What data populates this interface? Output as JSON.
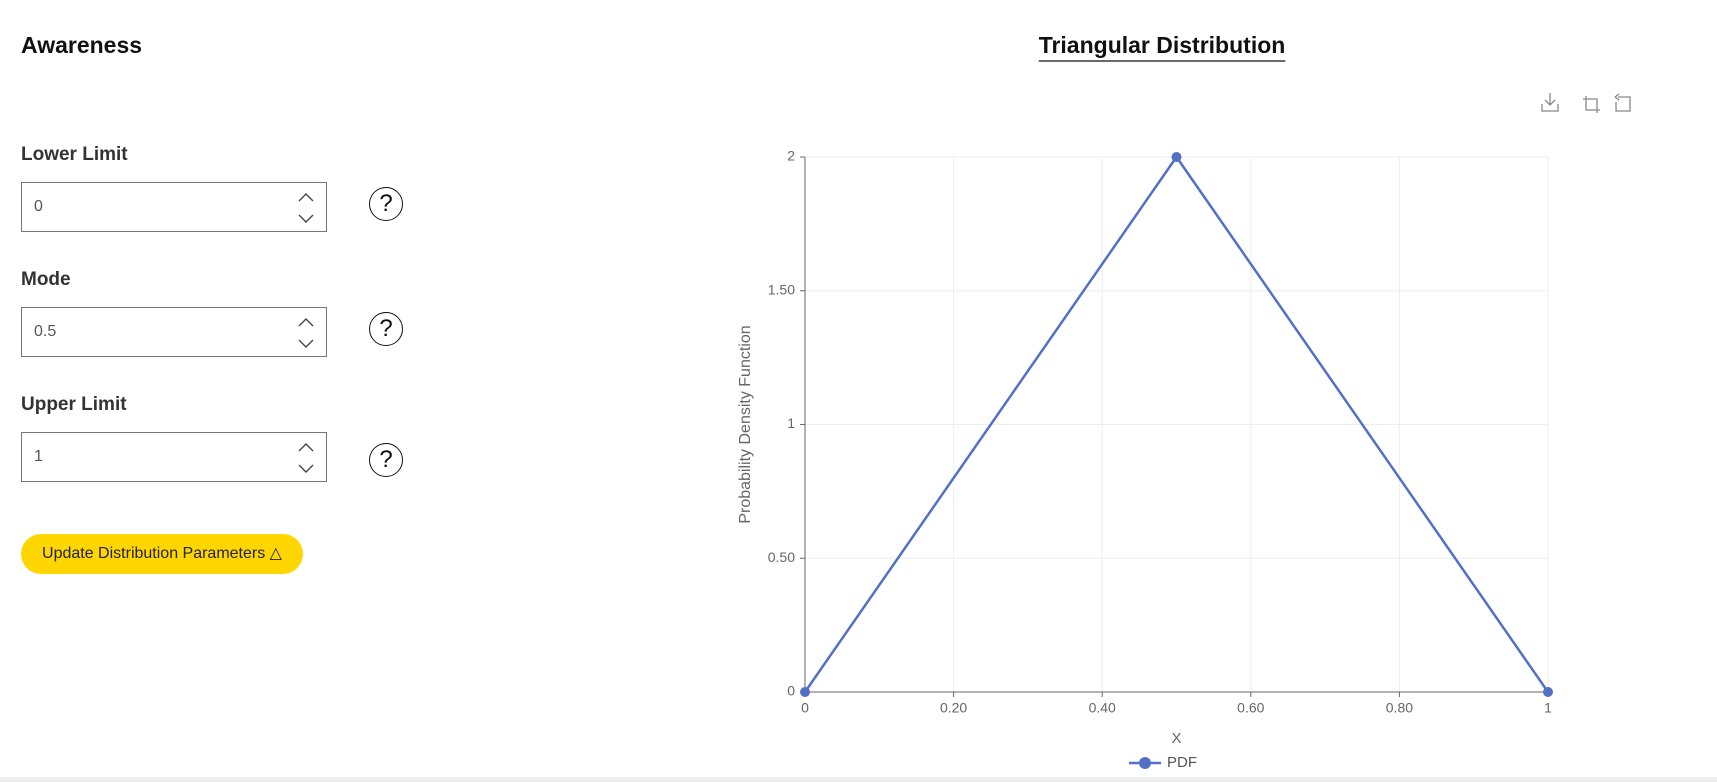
{
  "header": {
    "title": "Awareness"
  },
  "fields": [
    {
      "label": "Lower Limit",
      "value": "0"
    },
    {
      "label": "Mode",
      "value": "0.5"
    },
    {
      "label": "Upper Limit",
      "value": "1"
    }
  ],
  "help_icon": "?",
  "button": "Update Distribution Parameters △",
  "chart_data": {
    "type": "line",
    "title": "Triangular Distribution",
    "x": [
      0,
      0.5,
      1
    ],
    "series": [
      {
        "name": "PDF",
        "color": "#5470c6",
        "values": [
          0,
          2,
          0
        ]
      }
    ],
    "xlim": [
      0,
      1
    ],
    "xticks": [
      0,
      {
        "value": 0.2,
        "label": "0.20"
      },
      {
        "value": 0.4,
        "label": "0.40"
      },
      {
        "value": 0.6,
        "label": "0.60"
      },
      {
        "value": 0.8,
        "label": "0.80"
      },
      1
    ],
    "ylim": [
      0,
      2
    ],
    "yticks": [
      0,
      {
        "value": 0.5,
        "label": "0.50"
      },
      1,
      {
        "value": 1.5,
        "label": "1.50"
      },
      2
    ],
    "xlabel": "X",
    "ylabel": "Probability Density Function",
    "grid": true,
    "legend": "bottom"
  }
}
